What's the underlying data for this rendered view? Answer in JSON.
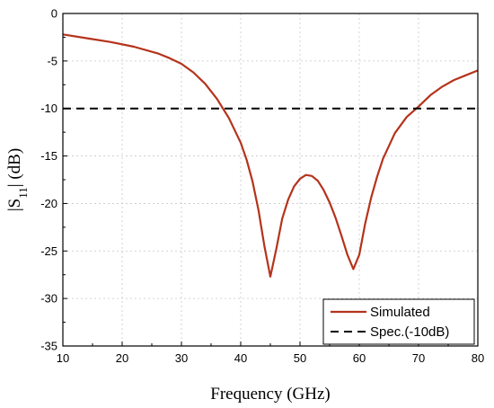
{
  "chart_data": {
    "type": "line",
    "xlabel": "Frequency (GHz)",
    "ylabel": "|S11| (dB)",
    "xlim": [
      10,
      80
    ],
    "ylim": [
      -35,
      0
    ],
    "xticks": [
      "10",
      "20",
      "30",
      "40",
      "50",
      "60",
      "70",
      "80"
    ],
    "yticks": [
      "0",
      "-5",
      "-10",
      "-15",
      "-20",
      "-25",
      "-30",
      "-35"
    ],
    "grid": true,
    "legend_position": "bottom-right",
    "series": [
      {
        "name": "Simulated",
        "color": "#b5331c",
        "style": "solid",
        "x": [
          10,
          14,
          18,
          22,
          26,
          28,
          30,
          32,
          34,
          36,
          38,
          40,
          41,
          42,
          43,
          44,
          45,
          46,
          47,
          48,
          49,
          50,
          51,
          52,
          53,
          54,
          55,
          56,
          57,
          58,
          59,
          60,
          61,
          62,
          63,
          64,
          66,
          68,
          70,
          72,
          74,
          76,
          78,
          80
        ],
        "y": [
          -2.2,
          -2.6,
          -3.0,
          -3.5,
          -4.2,
          -4.7,
          -5.3,
          -6.2,
          -7.4,
          -9.0,
          -11.0,
          -13.6,
          -15.4,
          -17.7,
          -20.7,
          -24.5,
          -27.7,
          -24.8,
          -21.6,
          -19.6,
          -18.2,
          -17.4,
          -17.0,
          -17.1,
          -17.6,
          -18.6,
          -19.9,
          -21.5,
          -23.4,
          -25.4,
          -26.9,
          -25.4,
          -22.1,
          -19.4,
          -17.2,
          -15.3,
          -12.6,
          -10.9,
          -9.8,
          -8.6,
          -7.7,
          -7.0,
          -6.5,
          -6.0
        ]
      },
      {
        "name": "Spec.(-10dB)",
        "color": "#000000",
        "style": "dashed",
        "x": [
          10,
          80
        ],
        "y": [
          -10,
          -10
        ]
      }
    ]
  }
}
